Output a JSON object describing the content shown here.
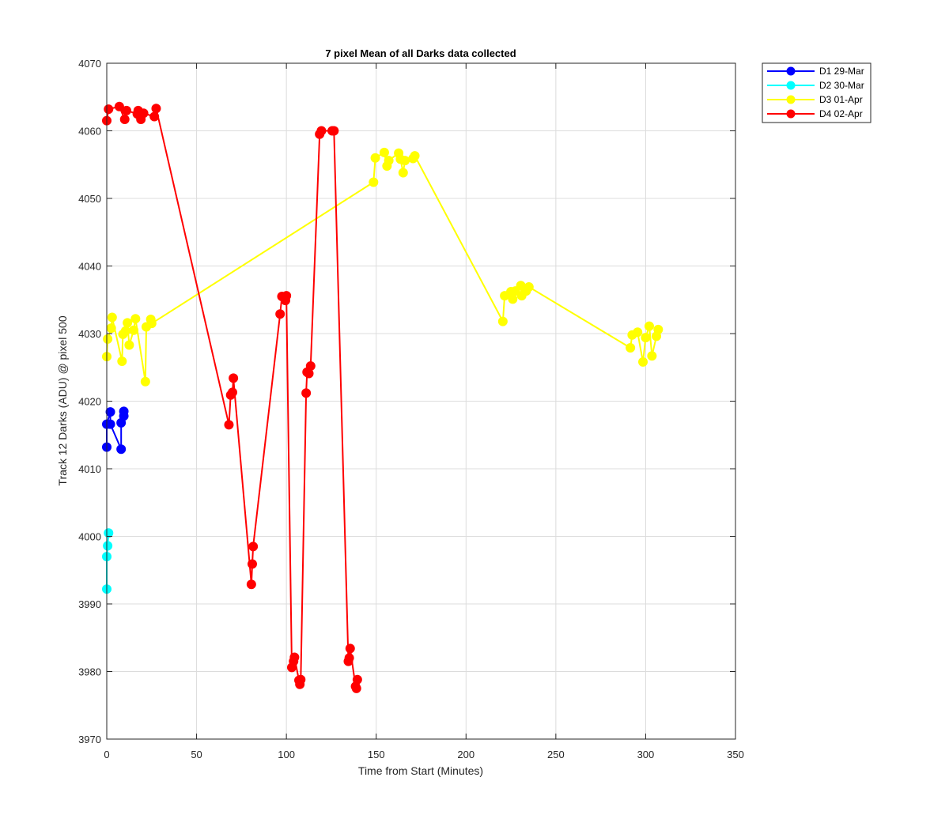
{
  "chart_data": {
    "type": "line",
    "title": "7 pixel Mean of all Darks data collected",
    "xlabel": "Time from Start (Minutes)",
    "ylabel": "Track 12 Darks (ADU) @ pixel 500",
    "xlim": [
      0,
      350
    ],
    "ylim": [
      3970,
      4070
    ],
    "xticks": [
      "0",
      "50",
      "100",
      "150",
      "200",
      "250",
      "300",
      "350"
    ],
    "yticks": [
      "3970",
      "3980",
      "3990",
      "4000",
      "4010",
      "4020",
      "4030",
      "4040",
      "4050",
      "4060",
      "4070"
    ],
    "grid": true,
    "legend_position": "outside top-right",
    "series": [
      {
        "name": "D1 29-Mar",
        "color": "#0000ff",
        "marker": "circle",
        "x": [
          0.0,
          0.0,
          2.0,
          2.0,
          8.0,
          8.0,
          9.5,
          9.5
        ],
        "y": [
          4013.2,
          4016.6,
          4018.4,
          4016.6,
          4012.9,
          4016.8,
          4017.8,
          4018.5
        ]
      },
      {
        "name": "D2 30-Mar",
        "color": "#00ffff",
        "marker": "circle",
        "x": [
          0.0,
          0.0,
          0.5,
          1.0
        ],
        "y": [
          3992.2,
          3997.0,
          3998.6,
          4000.5
        ]
      },
      {
        "name": "D3 01-Apr",
        "color": "#ffff00",
        "marker": "circle",
        "x": [
          0.0,
          0.5,
          2.5,
          3.0,
          8.5,
          9.0,
          10.5,
          11.5,
          12.5,
          15.0,
          16.0,
          21.5,
          22.0,
          24.5,
          25.0,
          148.5,
          149.5,
          154.5,
          156.0,
          157.0,
          162.5,
          163.5,
          165.0,
          166.0,
          170.5,
          171.5,
          220.5,
          221.5,
          225.0,
          226.0,
          227.5,
          230.5,
          231.0,
          233.5,
          235.0,
          291.5,
          292.5,
          295.5,
          298.5,
          300.0,
          302.0,
          303.5,
          306.0,
          307.0
        ],
        "y": [
          4026.6,
          4029.2,
          4030.8,
          4032.4,
          4025.9,
          4029.9,
          4030.4,
          4031.6,
          4028.3,
          4030.5,
          4032.2,
          4022.9,
          4031.0,
          4032.1,
          4031.5,
          4052.4,
          4056.0,
          4056.8,
          4054.8,
          4055.6,
          4056.7,
          4055.8,
          4053.8,
          4055.6,
          4055.9,
          4056.3,
          4031.8,
          4035.6,
          4036.2,
          4035.1,
          4036.3,
          4037.1,
          4035.6,
          4036.3,
          4036.9,
          4027.9,
          4029.8,
          4030.2,
          4025.8,
          4029.4,
          4031.1,
          4026.7,
          4029.6,
          4030.6
        ]
      },
      {
        "name": "D4 02-Apr",
        "color": "#ff0000",
        "marker": "circle",
        "x": [
          0.0,
          1.0,
          7.0,
          10.0,
          11.0,
          17.0,
          17.5,
          19.0,
          20.5,
          26.5,
          27.5,
          68.0,
          69.0,
          70.0,
          70.5,
          80.5,
          81.0,
          81.5,
          96.5,
          97.5,
          99.5,
          100.0,
          103.0,
          104.0,
          104.5,
          107.0,
          107.5,
          108.0,
          111.0,
          111.5,
          112.5,
          113.5,
          118.5,
          119.5,
          125.5,
          126.5,
          134.5,
          135.0,
          135.5,
          138.5,
          139.0,
          139.5
        ],
        "y": [
          4061.5,
          4063.2,
          4063.6,
          4061.7,
          4063.0,
          4062.5,
          4063.0,
          4061.7,
          4062.6,
          4062.1,
          4063.3,
          4016.5,
          4020.9,
          4021.3,
          4023.4,
          3992.9,
          3995.9,
          3998.5,
          4032.9,
          4035.5,
          4034.9,
          4035.6,
          3980.6,
          3981.5,
          3982.1,
          3978.7,
          3978.1,
          3978.8,
          4021.2,
          4024.3,
          4024.1,
          4025.2,
          4059.5,
          4060.0,
          4060.0,
          4060.0,
          3981.5,
          3982.0,
          3983.4,
          3977.8,
          3977.5,
          3978.8
        ]
      }
    ]
  }
}
